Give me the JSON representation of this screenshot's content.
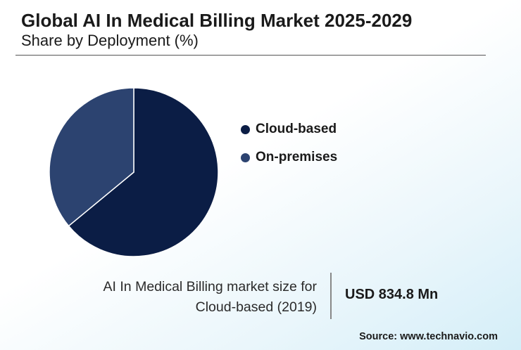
{
  "header": {
    "title": "Global AI In Medical Billing Market 2025-2029",
    "subtitle": "Share by Deployment (%)"
  },
  "chart_data": {
    "type": "pie",
    "title": "Global AI In Medical Billing Market 2025-2029",
    "subtitle": "Share by Deployment (%)",
    "categories": [
      "Cloud-based",
      "On-premises"
    ],
    "values": [
      64,
      36
    ],
    "colors": [
      "#0b1d45",
      "#2c4370"
    ],
    "start_angle_deg": 0,
    "legend_position": "right"
  },
  "legend": {
    "items": [
      {
        "label": "Cloud-based",
        "color": "#0b1d45"
      },
      {
        "label": "On-premises",
        "color": "#2c4370"
      }
    ]
  },
  "stat": {
    "label_line1": "AI In Medical Billing market size for",
    "label_line2": "Cloud-based (2019)",
    "value": "USD 834.8 Mn"
  },
  "source": "Source: www.technavio.com"
}
